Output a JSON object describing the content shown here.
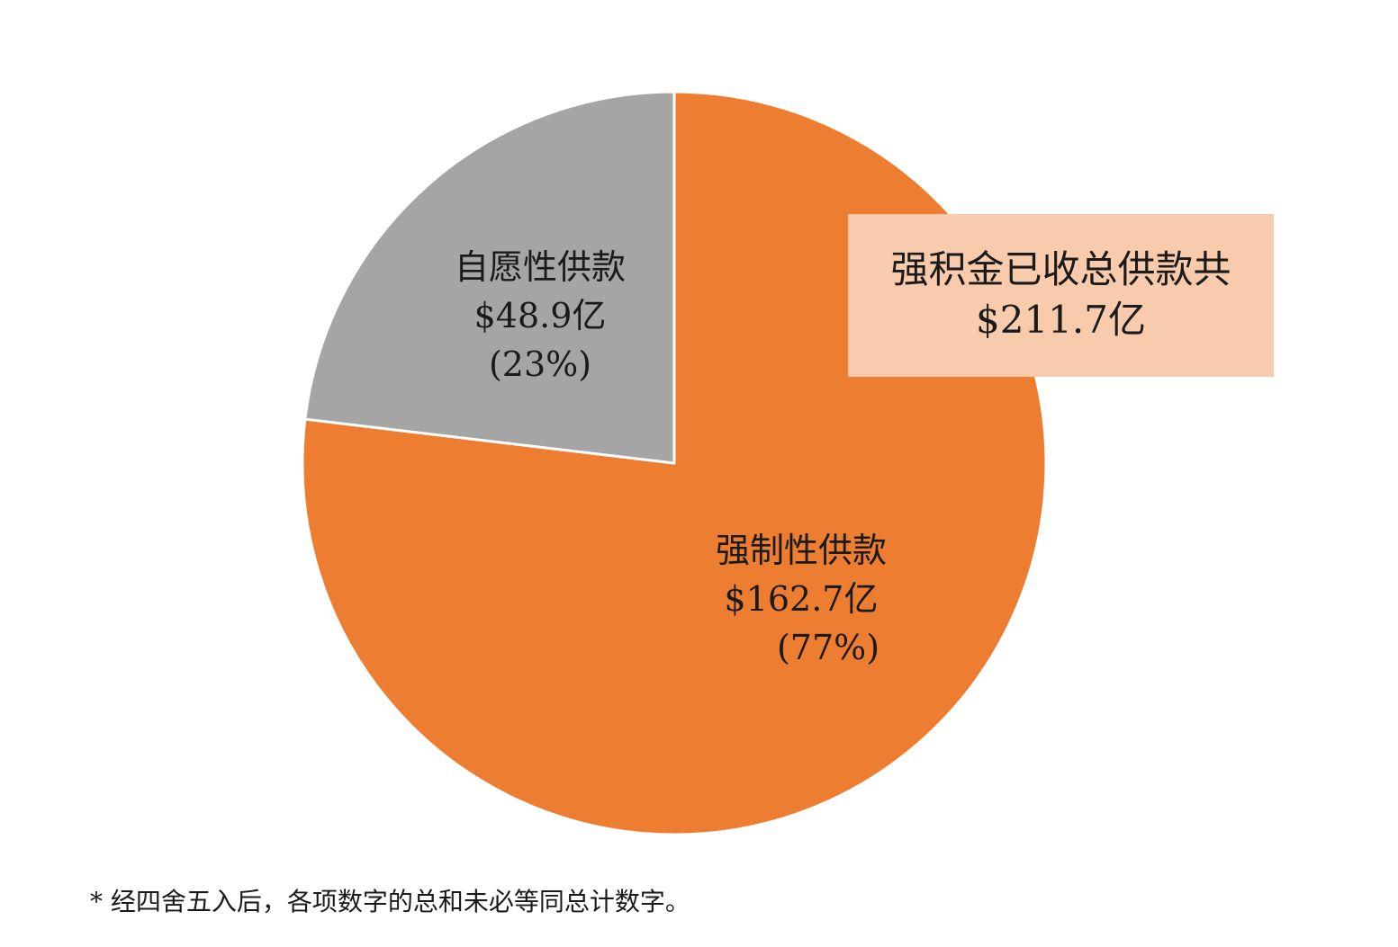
{
  "chart_data": {
    "type": "pie",
    "total": {
      "label": "强积金已收总供款共",
      "value_text": "$211.7亿",
      "value": 211.7
    },
    "slices": [
      {
        "name": "强制性供款",
        "value": 162.7,
        "value_text": "$162.7亿",
        "percent": 77,
        "percent_text": "(77%)",
        "color": "#ed7d31"
      },
      {
        "name": "自愿性供款",
        "value": 48.9,
        "value_text": "$48.9亿",
        "percent": 23,
        "percent_text": "(23%)",
        "color": "#a5a5a5"
      }
    ],
    "start_angle": "12 o'clock, clockwise",
    "slice_border_color": "#ffffff"
  },
  "footnote": "* 经四舍五入后，各项数字的总和未必等同总计数字。",
  "colors": {
    "total_box_background": "#f8cbad",
    "text": "#1a1a1a"
  }
}
